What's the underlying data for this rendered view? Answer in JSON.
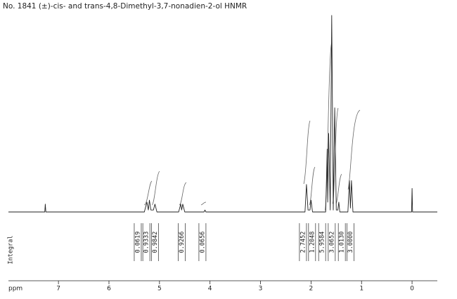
{
  "chart_data": {
    "type": "line",
    "title": "No. 1841 (±)-cis- and trans-4,8-Dimethyl-3,7-nonadien-2-ol HNMR",
    "x_label": "ppm",
    "integral_label": "Integral",
    "x": [
      7.99,
      7.27,
      7.26,
      7.25,
      5.3,
      5.25,
      5.22,
      5.2,
      5.17,
      5.12,
      5.09,
      5.05,
      4.62,
      4.58,
      4.56,
      4.54,
      4.5,
      4.12,
      4.1,
      4.08,
      2.12,
      2.09,
      2.06,
      2.02,
      2.0,
      1.97,
      1.71,
      1.68,
      1.67,
      1.65,
      1.62,
      1.59,
      1.56,
      1.53,
      1.5,
      1.47,
      1.45,
      1.43,
      1.27,
      1.24,
      1.22,
      1.2,
      1.17,
      0.01,
      0.0,
      -0.01,
      -0.5
    ],
    "values": [
      0,
      0,
      4,
      0,
      0,
      5,
      1,
      6,
      1,
      1,
      4,
      0,
      0,
      4,
      1,
      4,
      0,
      0,
      1,
      0,
      0,
      14,
      1,
      1,
      6,
      0,
      0,
      32,
      5,
      40,
      1,
      100,
      1,
      53,
      1,
      1,
      5,
      0,
      0,
      16,
      2,
      16,
      0,
      0,
      12,
      0,
      0
    ],
    "color": "#222222",
    "xlim": [
      7.99,
      -0.5
    ],
    "ylim": [
      0,
      100
    ],
    "xticks": [
      7,
      6,
      5,
      4,
      3,
      2,
      1,
      0
    ],
    "integrals": {
      "x": [
        5.43,
        5.26,
        5.09,
        4.56,
        4.15,
        2.16,
        1.98,
        1.78,
        1.59,
        1.39,
        1.22
      ],
      "values": [
        0.0619,
        0.9333,
        0.9842,
        0.9266,
        0.0656,
        2.7452,
        1.2048,
        5.9584,
        3.0652,
        1.013,
        3.0
      ],
      "value_labels": [
        "0.0619",
        "0.9333",
        "0.9842",
        "0.9266",
        "0.0656",
        "2.7452",
        "1.2048",
        "5.9584",
        "3.0652",
        "1.0130",
        "3.0000"
      ]
    }
  }
}
